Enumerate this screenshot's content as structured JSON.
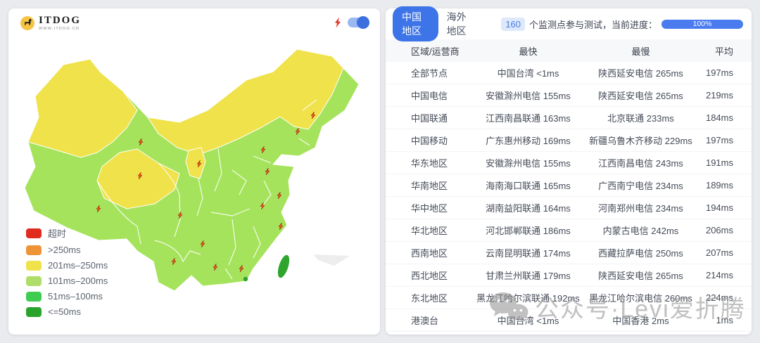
{
  "page": {
    "background": "#e9ebee"
  },
  "map_panel": {
    "logo": {
      "title": "ITDOG",
      "subtitle": "WWW.ITDOG.CN"
    },
    "speed_toggle": {
      "state": "on"
    },
    "legend": [
      {
        "label": "超时",
        "color": "#e02b20"
      },
      {
        "label": ">250ms",
        "color": "#ef9436"
      },
      {
        "label": "201ms–250ms",
        "color": "#f0e24a"
      },
      {
        "label": "101ms–200ms",
        "color": "#aede69"
      },
      {
        "label": "51ms–100ms",
        "color": "#3ecd52"
      },
      {
        "label": "<=50ms",
        "color": "#2aa32d"
      }
    ],
    "map": {
      "fill_fast": "#a6e35c",
      "fill_slow": "#f0e24a",
      "taiwan_color": "#2fa52f",
      "hongkong_color": "#2fa52f",
      "marker_icon": "lightning-icon",
      "marker_count": 16
    }
  },
  "results_panel": {
    "tabs": [
      {
        "label": "中国地区",
        "active": true
      },
      {
        "label": "海外地区",
        "active": false
      }
    ],
    "monitor_count": "160",
    "progress_label": "个监测点参与测试，当前进度：",
    "progress_value": "100%",
    "table": {
      "headers": [
        "区域/运营商",
        "最快",
        "最慢",
        "平均"
      ],
      "rows": [
        [
          "全部节点",
          "中国台湾 <1ms",
          "陕西延安电信 265ms",
          "197ms"
        ],
        [
          "中国电信",
          "安徽滁州电信 155ms",
          "陕西延安电信 265ms",
          "219ms"
        ],
        [
          "中国联通",
          "江西南昌联通 163ms",
          "北京联通 233ms",
          "184ms"
        ],
        [
          "中国移动",
          "广东惠州移动 169ms",
          "新疆乌鲁木齐移动 229ms",
          "197ms"
        ],
        [
          "华东地区",
          "安徽滁州电信 155ms",
          "江西南昌电信 243ms",
          "191ms"
        ],
        [
          "华南地区",
          "海南海口联通 165ms",
          "广西南宁电信 234ms",
          "189ms"
        ],
        [
          "华中地区",
          "湖南益阳联通 164ms",
          "河南郑州电信 234ms",
          "194ms"
        ],
        [
          "华北地区",
          "河北邯郸联通 186ms",
          "内蒙古电信 242ms",
          "206ms"
        ],
        [
          "西南地区",
          "云南昆明联通 174ms",
          "西藏拉萨电信 250ms",
          "207ms"
        ],
        [
          "西北地区",
          "甘肃兰州联通 179ms",
          "陕西延安电信 265ms",
          "214ms"
        ],
        [
          "东北地区",
          "黑龙江哈尔滨联通 192ms",
          "黑龙江哈尔滨电信 260ms",
          "224ms"
        ],
        [
          "港澳台",
          "中国台湾 <1ms",
          "中国香港 2ms",
          "1ms"
        ]
      ]
    }
  },
  "watermark": {
    "text": "公众号·Levi爱折腾"
  }
}
